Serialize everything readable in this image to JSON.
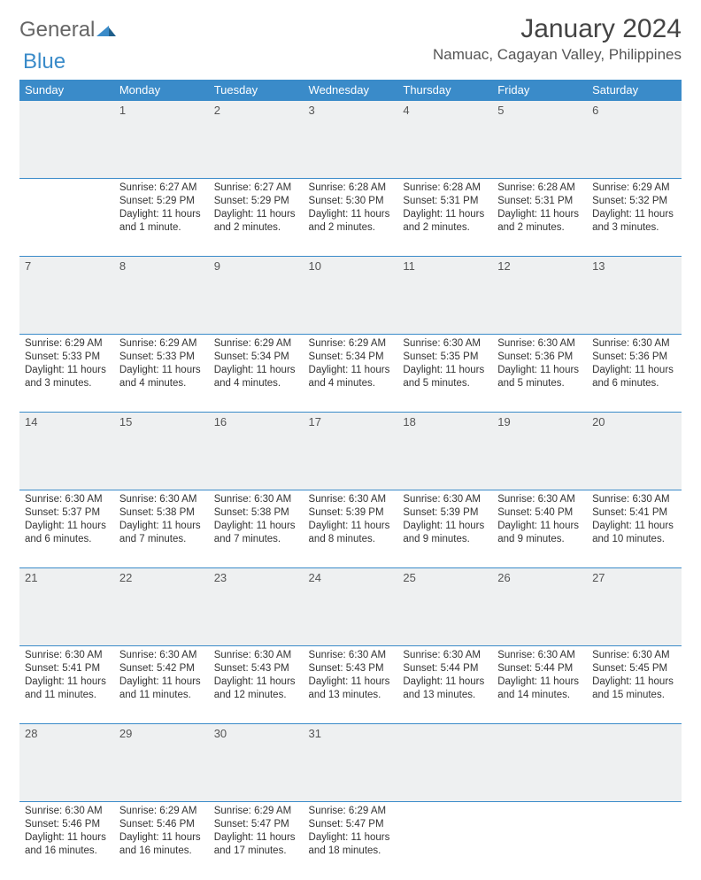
{
  "logo": {
    "text1": "General",
    "text2": "Blue"
  },
  "title": "January 2024",
  "location": "Namuac, Cagayan Valley, Philippines",
  "colors": {
    "header_bg": "#3a8bc9",
    "header_text": "#ffffff",
    "daynum_bg": "#eef0f1",
    "border": "#3a8bc9",
    "body_bg": "#ffffff",
    "text": "#333333",
    "logo_blue": "#3a8bc9",
    "logo_gray": "#666666"
  },
  "day_headers": [
    "Sunday",
    "Monday",
    "Tuesday",
    "Wednesday",
    "Thursday",
    "Friday",
    "Saturday"
  ],
  "weeks": [
    {
      "nums": [
        "",
        "1",
        "2",
        "3",
        "4",
        "5",
        "6"
      ],
      "cells": [
        "",
        "Sunrise: 6:27 AM\nSunset: 5:29 PM\nDaylight: 11 hours and 1 minute.",
        "Sunrise: 6:27 AM\nSunset: 5:29 PM\nDaylight: 11 hours and 2 minutes.",
        "Sunrise: 6:28 AM\nSunset: 5:30 PM\nDaylight: 11 hours and 2 minutes.",
        "Sunrise: 6:28 AM\nSunset: 5:31 PM\nDaylight: 11 hours and 2 minutes.",
        "Sunrise: 6:28 AM\nSunset: 5:31 PM\nDaylight: 11 hours and 2 minutes.",
        "Sunrise: 6:29 AM\nSunset: 5:32 PM\nDaylight: 11 hours and 3 minutes."
      ]
    },
    {
      "nums": [
        "7",
        "8",
        "9",
        "10",
        "11",
        "12",
        "13"
      ],
      "cells": [
        "Sunrise: 6:29 AM\nSunset: 5:33 PM\nDaylight: 11 hours and 3 minutes.",
        "Sunrise: 6:29 AM\nSunset: 5:33 PM\nDaylight: 11 hours and 4 minutes.",
        "Sunrise: 6:29 AM\nSunset: 5:34 PM\nDaylight: 11 hours and 4 minutes.",
        "Sunrise: 6:29 AM\nSunset: 5:34 PM\nDaylight: 11 hours and 4 minutes.",
        "Sunrise: 6:30 AM\nSunset: 5:35 PM\nDaylight: 11 hours and 5 minutes.",
        "Sunrise: 6:30 AM\nSunset: 5:36 PM\nDaylight: 11 hours and 5 minutes.",
        "Sunrise: 6:30 AM\nSunset: 5:36 PM\nDaylight: 11 hours and 6 minutes."
      ]
    },
    {
      "nums": [
        "14",
        "15",
        "16",
        "17",
        "18",
        "19",
        "20"
      ],
      "cells": [
        "Sunrise: 6:30 AM\nSunset: 5:37 PM\nDaylight: 11 hours and 6 minutes.",
        "Sunrise: 6:30 AM\nSunset: 5:38 PM\nDaylight: 11 hours and 7 minutes.",
        "Sunrise: 6:30 AM\nSunset: 5:38 PM\nDaylight: 11 hours and 7 minutes.",
        "Sunrise: 6:30 AM\nSunset: 5:39 PM\nDaylight: 11 hours and 8 minutes.",
        "Sunrise: 6:30 AM\nSunset: 5:39 PM\nDaylight: 11 hours and 9 minutes.",
        "Sunrise: 6:30 AM\nSunset: 5:40 PM\nDaylight: 11 hours and 9 minutes.",
        "Sunrise: 6:30 AM\nSunset: 5:41 PM\nDaylight: 11 hours and 10 minutes."
      ]
    },
    {
      "nums": [
        "21",
        "22",
        "23",
        "24",
        "25",
        "26",
        "27"
      ],
      "cells": [
        "Sunrise: 6:30 AM\nSunset: 5:41 PM\nDaylight: 11 hours and 11 minutes.",
        "Sunrise: 6:30 AM\nSunset: 5:42 PM\nDaylight: 11 hours and 11 minutes.",
        "Sunrise: 6:30 AM\nSunset: 5:43 PM\nDaylight: 11 hours and 12 minutes.",
        "Sunrise: 6:30 AM\nSunset: 5:43 PM\nDaylight: 11 hours and 13 minutes.",
        "Sunrise: 6:30 AM\nSunset: 5:44 PM\nDaylight: 11 hours and 13 minutes.",
        "Sunrise: 6:30 AM\nSunset: 5:44 PM\nDaylight: 11 hours and 14 minutes.",
        "Sunrise: 6:30 AM\nSunset: 5:45 PM\nDaylight: 11 hours and 15 minutes."
      ]
    },
    {
      "nums": [
        "28",
        "29",
        "30",
        "31",
        "",
        "",
        ""
      ],
      "cells": [
        "Sunrise: 6:30 AM\nSunset: 5:46 PM\nDaylight: 11 hours and 16 minutes.",
        "Sunrise: 6:29 AM\nSunset: 5:46 PM\nDaylight: 11 hours and 16 minutes.",
        "Sunrise: 6:29 AM\nSunset: 5:47 PM\nDaylight: 11 hours and 17 minutes.",
        "Sunrise: 6:29 AM\nSunset: 5:47 PM\nDaylight: 11 hours and 18 minutes.",
        "",
        "",
        ""
      ]
    }
  ]
}
